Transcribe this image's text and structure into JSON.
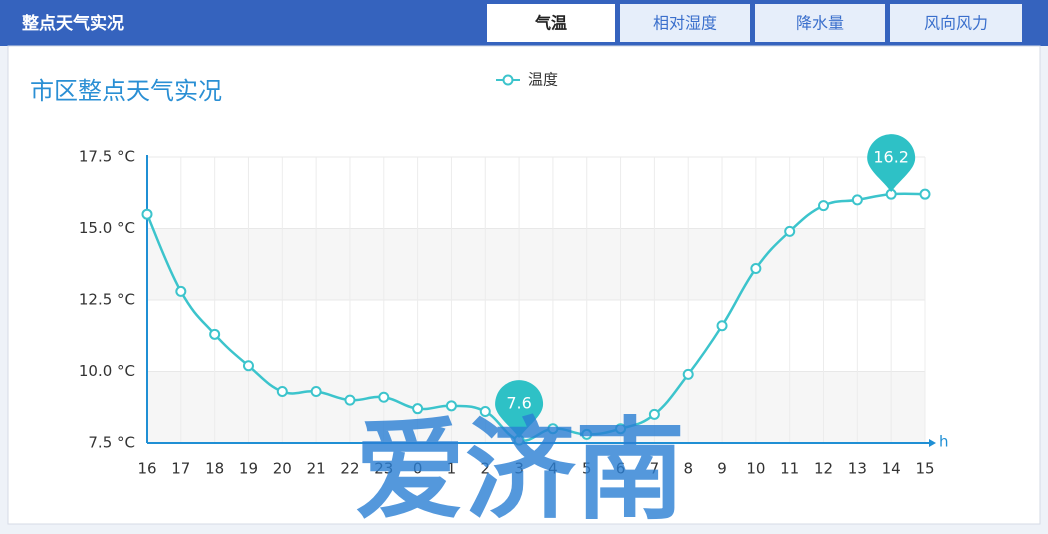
{
  "header": {
    "title": "整点天气实况",
    "tabs": [
      "气温",
      "相对湿度",
      "降水量",
      "风向风力"
    ]
  },
  "watermark": "爱济南",
  "chart_data": {
    "type": "line",
    "title": "市区整点天气实况",
    "categories": [
      "16",
      "17",
      "18",
      "19",
      "20",
      "21",
      "22",
      "23",
      "0",
      "1",
      "2",
      "3",
      "4",
      "5",
      "6",
      "7",
      "8",
      "9",
      "10",
      "11",
      "12",
      "13",
      "14",
      "15"
    ],
    "x_unit": "h",
    "series": [
      {
        "name": "温度",
        "color": "#3cc4cc",
        "values": [
          15.5,
          12.8,
          11.3,
          10.2,
          9.3,
          9.3,
          9.0,
          9.1,
          8.7,
          8.8,
          8.6,
          7.6,
          8.0,
          7.8,
          8.0,
          8.5,
          9.9,
          11.6,
          13.6,
          14.9,
          15.8,
          16.0,
          16.2,
          16.2
        ],
        "value_labels": [
          null,
          null,
          null,
          null,
          null,
          null,
          null,
          null,
          null,
          null,
          null,
          "7.6",
          null,
          null,
          null,
          null,
          null,
          null,
          null,
          null,
          null,
          null,
          "16.2",
          null
        ]
      }
    ],
    "ylim": [
      7.5,
      17.5
    ],
    "yticks": [
      {
        "value": 7.5,
        "label": "7.5 °C"
      },
      {
        "value": 10,
        "label": "10.0 °C"
      },
      {
        "value": 12.5,
        "label": "12.5 °C"
      },
      {
        "value": 15,
        "label": "15.0 °C"
      },
      {
        "value": 17.5,
        "label": "17.5 °C"
      }
    ],
    "grid": true
  }
}
